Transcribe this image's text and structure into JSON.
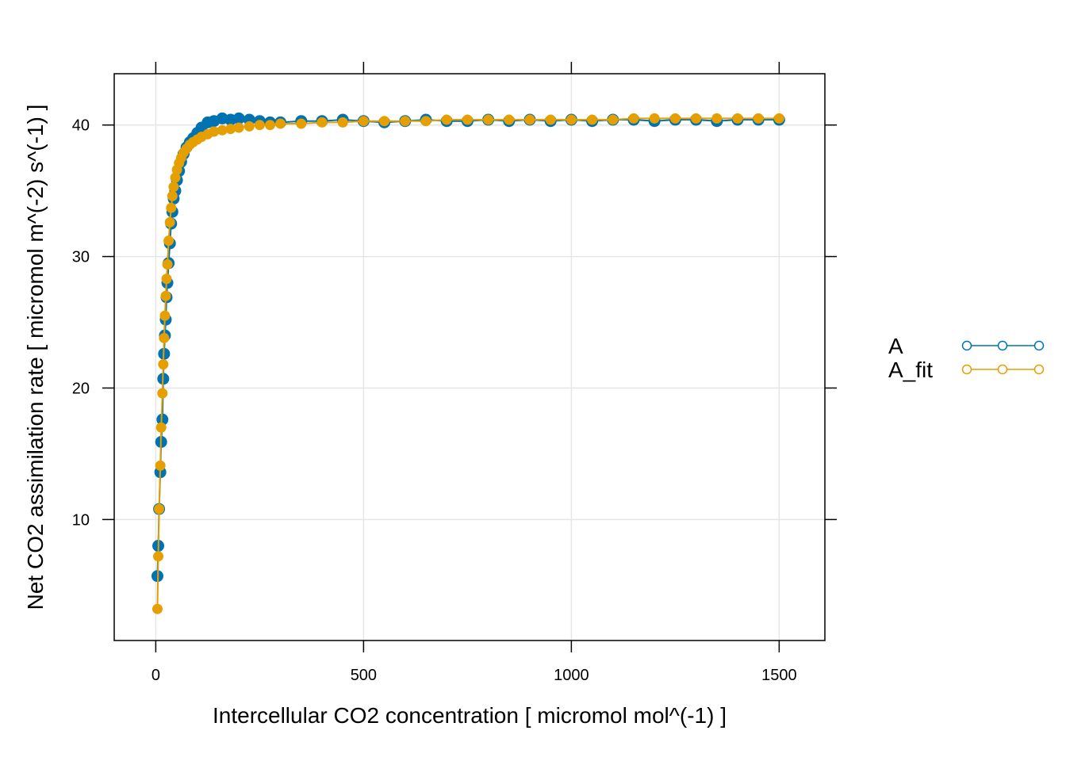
{
  "chart_data": {
    "type": "line",
    "title": "",
    "xlabel": "Intercellular CO2 concentration [ micromol mol^(-1) ]",
    "ylabel": "Net CO2 assimilation rate [ micromol m^(-2) s^(-1) ]",
    "xlim": [
      -100,
      1610
    ],
    "ylim": [
      0.8,
      43.9
    ],
    "x_ticks": [
      0,
      500,
      1000,
      1500
    ],
    "x_tick_labels": [
      "0",
      "500",
      "1000",
      "1500"
    ],
    "y_ticks": [
      10,
      20,
      30,
      40
    ],
    "y_tick_labels": [
      "10",
      "20",
      "30",
      "40"
    ],
    "grid": true,
    "legend_position": "right",
    "legend": [
      {
        "label": "A",
        "color": "#0072B2"
      },
      {
        "label": "A_fit",
        "color": "#E69F00"
      }
    ],
    "series": [
      {
        "name": "A",
        "color": "#0072B2",
        "marker": "filled-circle",
        "x": [
          4,
          6,
          8,
          11,
          13,
          16,
          18,
          20,
          22,
          24,
          26,
          28,
          31,
          34,
          37,
          40,
          43,
          47,
          51,
          56,
          61,
          67,
          74,
          82,
          90,
          100,
          110,
          125,
          140,
          160,
          180,
          200,
          225,
          250,
          275,
          300,
          350,
          400,
          450,
          500,
          550,
          600,
          650,
          700,
          750,
          800,
          850,
          900,
          950,
          1000,
          1050,
          1100,
          1150,
          1200,
          1250,
          1300,
          1350,
          1400,
          1450,
          1500
        ],
        "y": [
          5.7,
          8.0,
          10.8,
          13.6,
          15.9,
          17.6,
          20.7,
          22.6,
          24.0,
          25.2,
          26.9,
          28.0,
          29.5,
          31.0,
          32.5,
          33.4,
          34.4,
          35.0,
          35.8,
          36.5,
          37.2,
          37.8,
          38.3,
          38.7,
          39.0,
          39.4,
          39.8,
          40.2,
          40.3,
          40.5,
          40.4,
          40.5,
          40.4,
          40.3,
          40.2,
          40.2,
          40.3,
          40.3,
          40.4,
          40.3,
          40.2,
          40.3,
          40.4,
          40.3,
          40.3,
          40.4,
          40.3,
          40.4,
          40.3,
          40.4,
          40.3,
          40.4,
          40.4,
          40.3,
          40.4,
          40.4,
          40.3,
          40.4,
          40.4,
          40.4
        ]
      },
      {
        "name": "A_fit",
        "color": "#E69F00",
        "marker": "filled-circle",
        "x": [
          4,
          6,
          8,
          11,
          13,
          16,
          18,
          20,
          22,
          24,
          26,
          28,
          31,
          34,
          37,
          40,
          43,
          47,
          51,
          56,
          61,
          67,
          74,
          82,
          90,
          100,
          110,
          125,
          140,
          160,
          180,
          200,
          225,
          250,
          275,
          300,
          350,
          400,
          450,
          500,
          550,
          600,
          650,
          700,
          750,
          800,
          850,
          900,
          950,
          1000,
          1050,
          1100,
          1150,
          1200,
          1250,
          1300,
          1350,
          1400,
          1450,
          1500
        ],
        "y": [
          3.2,
          7.2,
          10.8,
          14.1,
          17.0,
          19.6,
          21.8,
          23.8,
          25.5,
          27.0,
          28.3,
          29.4,
          31.2,
          32.6,
          33.7,
          34.6,
          35.3,
          36.0,
          36.6,
          37.1,
          37.5,
          37.9,
          38.2,
          38.5,
          38.7,
          38.9,
          39.1,
          39.3,
          39.5,
          39.6,
          39.7,
          39.8,
          39.9,
          40.0,
          40.0,
          40.1,
          40.1,
          40.2,
          40.2,
          40.3,
          40.3,
          40.3,
          40.3,
          40.4,
          40.4,
          40.4,
          40.4,
          40.4,
          40.4,
          40.4,
          40.4,
          40.4,
          40.5,
          40.5,
          40.5,
          40.5,
          40.5,
          40.5,
          40.5,
          40.5
        ]
      }
    ]
  }
}
